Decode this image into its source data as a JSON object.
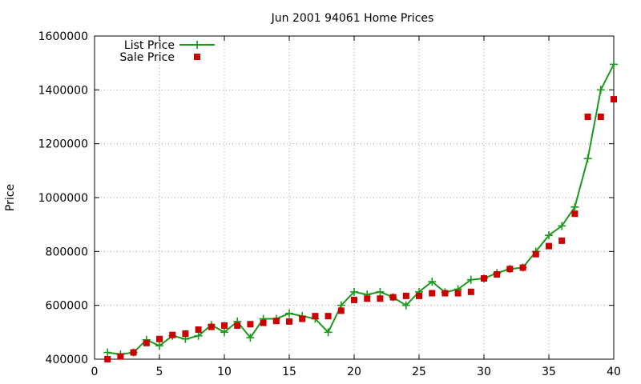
{
  "chart_data": {
    "type": "line",
    "title": "Jun 2001 94061 Home Prices",
    "xlabel": "",
    "ylabel": "Price",
    "xlim": [
      0,
      40
    ],
    "ylim": [
      400000,
      1600000
    ],
    "x_ticks": [
      0,
      5,
      10,
      15,
      20,
      25,
      30,
      35,
      40
    ],
    "y_ticks": [
      400000,
      600000,
      800000,
      1000000,
      1200000,
      1400000,
      1600000
    ],
    "grid": true,
    "legend_position": "top-left",
    "series": [
      {
        "name": "List Price",
        "style": "line-with-plus-markers",
        "color": "#1a9a1a",
        "points": [
          [
            1,
            425000
          ],
          [
            2,
            418000
          ],
          [
            3,
            425000
          ],
          [
            4,
            472000
          ],
          [
            5,
            450000
          ],
          [
            6,
            487000
          ],
          [
            7,
            475000
          ],
          [
            8,
            487000
          ],
          [
            9,
            527000
          ],
          [
            10,
            500000
          ],
          [
            11,
            540000
          ],
          [
            12,
            480000
          ],
          [
            13,
            550000
          ],
          [
            14,
            550000
          ],
          [
            15,
            570000
          ],
          [
            16,
            560000
          ],
          [
            17,
            550000
          ],
          [
            18,
            500000
          ],
          [
            19,
            600000
          ],
          [
            20,
            650000
          ],
          [
            21,
            640000
          ],
          [
            22,
            650000
          ],
          [
            23,
            630000
          ],
          [
            24,
            600000
          ],
          [
            25,
            650000
          ],
          [
            26,
            688000
          ],
          [
            27,
            648000
          ],
          [
            28,
            660000
          ],
          [
            29,
            695000
          ],
          [
            30,
            700000
          ],
          [
            31,
            720000
          ],
          [
            32,
            735000
          ],
          [
            33,
            740000
          ],
          [
            34,
            800000
          ],
          [
            35,
            860000
          ],
          [
            36,
            895000
          ],
          [
            37,
            965000
          ],
          [
            38,
            1145000
          ],
          [
            39,
            1400000
          ],
          [
            40,
            1495000
          ]
        ]
      },
      {
        "name": "Sale Price",
        "style": "square-markers",
        "color": "#cc0000",
        "points": [
          [
            1,
            400000
          ],
          [
            2,
            410000
          ],
          [
            3,
            425000
          ],
          [
            4,
            460000
          ],
          [
            5,
            475000
          ],
          [
            6,
            490000
          ],
          [
            7,
            495000
          ],
          [
            8,
            510000
          ],
          [
            9,
            520000
          ],
          [
            10,
            525000
          ],
          [
            11,
            525000
          ],
          [
            12,
            530000
          ],
          [
            13,
            535000
          ],
          [
            14,
            542000
          ],
          [
            15,
            540000
          ],
          [
            16,
            550000
          ],
          [
            17,
            560000
          ],
          [
            18,
            560000
          ],
          [
            19,
            580000
          ],
          [
            20,
            620000
          ],
          [
            21,
            625000
          ],
          [
            22,
            625000
          ],
          [
            23,
            630000
          ],
          [
            24,
            635000
          ],
          [
            25,
            635000
          ],
          [
            26,
            645000
          ],
          [
            27,
            645000
          ],
          [
            28,
            645000
          ],
          [
            29,
            650000
          ],
          [
            30,
            700000
          ],
          [
            31,
            715000
          ],
          [
            32,
            735000
          ],
          [
            33,
            740000
          ],
          [
            34,
            790000
          ],
          [
            35,
            820000
          ],
          [
            36,
            840000
          ],
          [
            37,
            940000
          ],
          [
            38,
            1300000
          ],
          [
            39,
            1300000
          ],
          [
            40,
            1365000
          ]
        ]
      }
    ]
  }
}
